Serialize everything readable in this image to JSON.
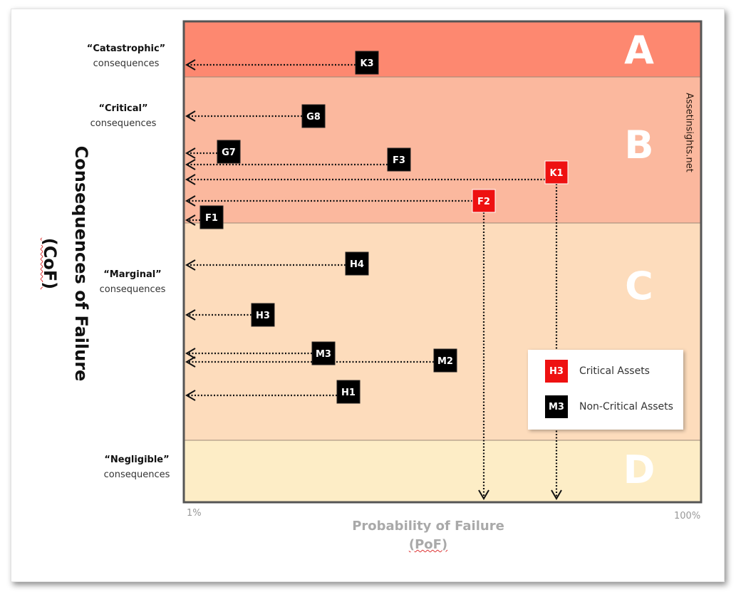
{
  "y_axis": {
    "title_line1": "Consequences of Failure",
    "title_line2": "(CoF)"
  },
  "x_axis": {
    "title_line1": "Probability of Failure",
    "title_line2": "(PoF)",
    "tick_min": "1%",
    "tick_max": "100%"
  },
  "categories": [
    {
      "quoted": "“Catastrophic”",
      "label": "consequences"
    },
    {
      "quoted": "“Critical”",
      "label": "consequences"
    },
    {
      "quoted": "“Marginal”",
      "label": "consequences"
    },
    {
      "quoted": "“Negligible”",
      "label": "consequences"
    }
  ],
  "zones": [
    {
      "letter": "A",
      "color": "#fd8870"
    },
    {
      "letter": "B",
      "color": "#fbb89e"
    },
    {
      "letter": "C",
      "color": "#fddcbc"
    },
    {
      "letter": "D",
      "color": "#fdedc6"
    }
  ],
  "watermark": "Assetinsights.net",
  "assets": [
    {
      "id": "K3",
      "critical": false
    },
    {
      "id": "G8",
      "critical": false
    },
    {
      "id": "G7",
      "critical": false
    },
    {
      "id": "F3",
      "critical": false
    },
    {
      "id": "K1",
      "critical": true
    },
    {
      "id": "F2",
      "critical": true
    },
    {
      "id": "F1",
      "critical": false
    },
    {
      "id": "H4",
      "critical": false
    },
    {
      "id": "H3",
      "critical": false
    },
    {
      "id": "M3",
      "critical": false
    },
    {
      "id": "M2",
      "critical": false
    },
    {
      "id": "H1",
      "critical": false
    }
  ],
  "legend": {
    "critical": {
      "swatch": "H3",
      "label": "Critical Assets",
      "color": "#ee1111"
    },
    "noncritical": {
      "swatch": "M3",
      "label": "Non-Critical Assets",
      "color": "#000000"
    }
  }
}
